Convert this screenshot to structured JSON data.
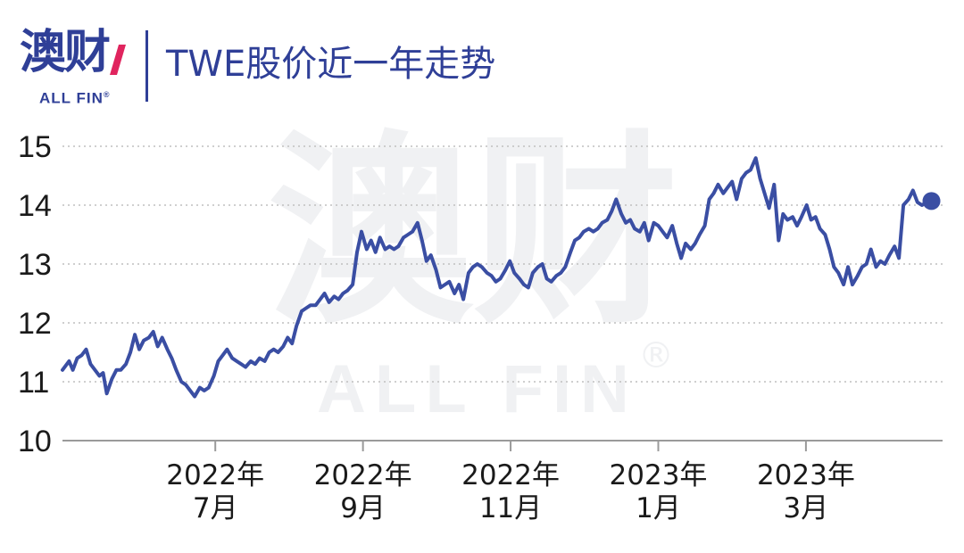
{
  "header": {
    "logo_cn": "澳财",
    "logo_en": "ALL FIN",
    "logo_reg": "®",
    "title": "TWE股价近一年走势"
  },
  "watermark": {
    "cn": "澳财",
    "en": "ALL FIN",
    "reg": "®"
  },
  "colors": {
    "line": "#3a4ea3",
    "brand": "#2f3f97",
    "accent": "#e0245e",
    "grid": "#bfbfbf",
    "axis": "#9a9a9a",
    "watermark": "#f0f1f3"
  },
  "chart_data": {
    "type": "line",
    "title": "TWE股价近一年走势",
    "xlabel": "",
    "ylabel": "",
    "ylim": [
      10,
      15
    ],
    "yticks": [
      "10",
      "11",
      "12",
      "13",
      "14",
      "15"
    ],
    "grid": "horizontal dotted",
    "x_ticks": [
      {
        "month_index": 2.07,
        "line1": "2022年",
        "line2": "7月"
      },
      {
        "month_index": 4.07,
        "line1": "2022年",
        "line2": "9月"
      },
      {
        "month_index": 6.07,
        "line1": "2022年",
        "line2": "11月"
      },
      {
        "month_index": 8.07,
        "line1": "2023年",
        "line2": "1月"
      },
      {
        "month_index": 10.07,
        "line1": "2023年",
        "line2": "3月"
      }
    ],
    "x_range": [
      0,
      11.8
    ],
    "series": [
      {
        "x": [
          0,
          0.09,
          0.14,
          0.2,
          0.26,
          0.32,
          0.38,
          0.44,
          0.5,
          0.55,
          0.6,
          0.67,
          0.73,
          0.79,
          0.86,
          0.92,
          0.98,
          1.04,
          1.1,
          1.17,
          1.23,
          1.29,
          1.35,
          1.42,
          1.48,
          1.54,
          1.61,
          1.67,
          1.73,
          1.79,
          1.86,
          1.92,
          1.98,
          2.05,
          2.11,
          2.17,
          2.23,
          2.3,
          2.36,
          2.42,
          2.48,
          2.55,
          2.61,
          2.67,
          2.74,
          2.8,
          2.86,
          2.92,
          2.99,
          3.05,
          3.11,
          3.17,
          3.24,
          3.3,
          3.36,
          3.43,
          3.49,
          3.55,
          3.61,
          3.68,
          3.74,
          3.8,
          3.86,
          3.93,
          3.99,
          4.05,
          4.12,
          4.18,
          4.24,
          4.3,
          4.37,
          4.43,
          4.49,
          4.55,
          4.62,
          4.68,
          4.74,
          4.81,
          4.87,
          4.93,
          4.99,
          5.06,
          5.12,
          5.18,
          5.24,
          5.31,
          5.37,
          5.43,
          5.5,
          5.56,
          5.62,
          5.68,
          5.75,
          5.81,
          5.87,
          5.93,
          6.0,
          6.06,
          6.12,
          6.19,
          6.25,
          6.31,
          6.37,
          6.44,
          6.5,
          6.56,
          6.62,
          6.69,
          6.75,
          6.81,
          6.88,
          6.94,
          7.0,
          7.06,
          7.13,
          7.19,
          7.25,
          7.31,
          7.38,
          7.44,
          7.5,
          7.57,
          7.63,
          7.69,
          7.75,
          7.82,
          7.88,
          7.94,
          8.01,
          8.07,
          8.13,
          8.19,
          8.26,
          8.32,
          8.38,
          8.44,
          8.51,
          8.57,
          8.63,
          8.7,
          8.76,
          8.82,
          8.88,
          8.95,
          9.01,
          9.07,
          9.13,
          9.2,
          9.26,
          9.32,
          9.39,
          9.45,
          9.51,
          9.57,
          9.64,
          9.7,
          9.76,
          9.82,
          9.89,
          9.95,
          10.01,
          10.08,
          10.14,
          10.2,
          10.26,
          10.33,
          10.39,
          10.45,
          10.51,
          10.58,
          10.64,
          10.7,
          10.77,
          10.83,
          10.89,
          10.95,
          11.02,
          11.08,
          11.14,
          11.2,
          11.27,
          11.33,
          11.39,
          11.46,
          11.52,
          11.58,
          11.64,
          11.71,
          11.77
        ],
        "values": [
          11.2,
          11.35,
          11.2,
          11.4,
          11.45,
          11.55,
          11.3,
          11.2,
          11.1,
          11.15,
          10.8,
          11.05,
          11.2,
          11.2,
          11.3,
          11.5,
          11.8,
          11.55,
          11.7,
          11.75,
          11.85,
          11.6,
          11.75,
          11.55,
          11.4,
          11.2,
          11.0,
          10.95,
          10.85,
          10.75,
          10.9,
          10.85,
          10.9,
          11.1,
          11.35,
          11.45,
          11.55,
          11.4,
          11.35,
          11.3,
          11.25,
          11.35,
          11.3,
          11.4,
          11.35,
          11.5,
          11.55,
          11.5,
          11.6,
          11.75,
          11.65,
          11.95,
          12.2,
          12.25,
          12.3,
          12.3,
          12.4,
          12.5,
          12.35,
          12.45,
          12.4,
          12.5,
          12.55,
          12.65,
          13.2,
          13.55,
          13.25,
          13.4,
          13.2,
          13.45,
          13.25,
          13.3,
          13.25,
          13.3,
          13.45,
          13.5,
          13.55,
          13.7,
          13.4,
          13.05,
          13.15,
          12.9,
          12.6,
          12.65,
          12.7,
          12.5,
          12.65,
          12.4,
          12.85,
          12.95,
          13.0,
          12.95,
          12.85,
          12.8,
          12.7,
          12.75,
          12.9,
          13.05,
          12.85,
          12.75,
          12.65,
          12.6,
          12.85,
          12.95,
          13.0,
          12.75,
          12.7,
          12.8,
          12.85,
          12.95,
          13.2,
          13.4,
          13.45,
          13.55,
          13.6,
          13.55,
          13.6,
          13.7,
          13.75,
          13.9,
          14.1,
          13.85,
          13.7,
          13.75,
          13.6,
          13.55,
          13.7,
          13.4,
          13.7,
          13.65,
          13.55,
          13.45,
          13.65,
          13.35,
          13.1,
          13.35,
          13.25,
          13.35,
          13.5,
          13.65,
          14.1,
          14.2,
          14.35,
          14.2,
          14.3,
          14.4,
          14.1,
          14.45,
          14.55,
          14.6,
          14.8,
          14.45,
          14.2,
          13.95,
          14.35,
          13.4,
          13.85,
          13.75,
          13.8,
          13.65,
          13.8,
          14.0,
          13.75,
          13.8,
          13.6,
          13.5,
          13.25,
          12.95,
          12.85,
          12.65,
          12.95,
          12.65,
          12.8,
          12.95,
          13.0,
          13.25,
          12.95,
          13.05,
          13.0,
          13.15,
          13.3,
          13.1,
          14.0,
          14.1,
          14.25,
          14.05,
          14.0,
          14.05,
          14.07
        ]
      }
    ]
  }
}
